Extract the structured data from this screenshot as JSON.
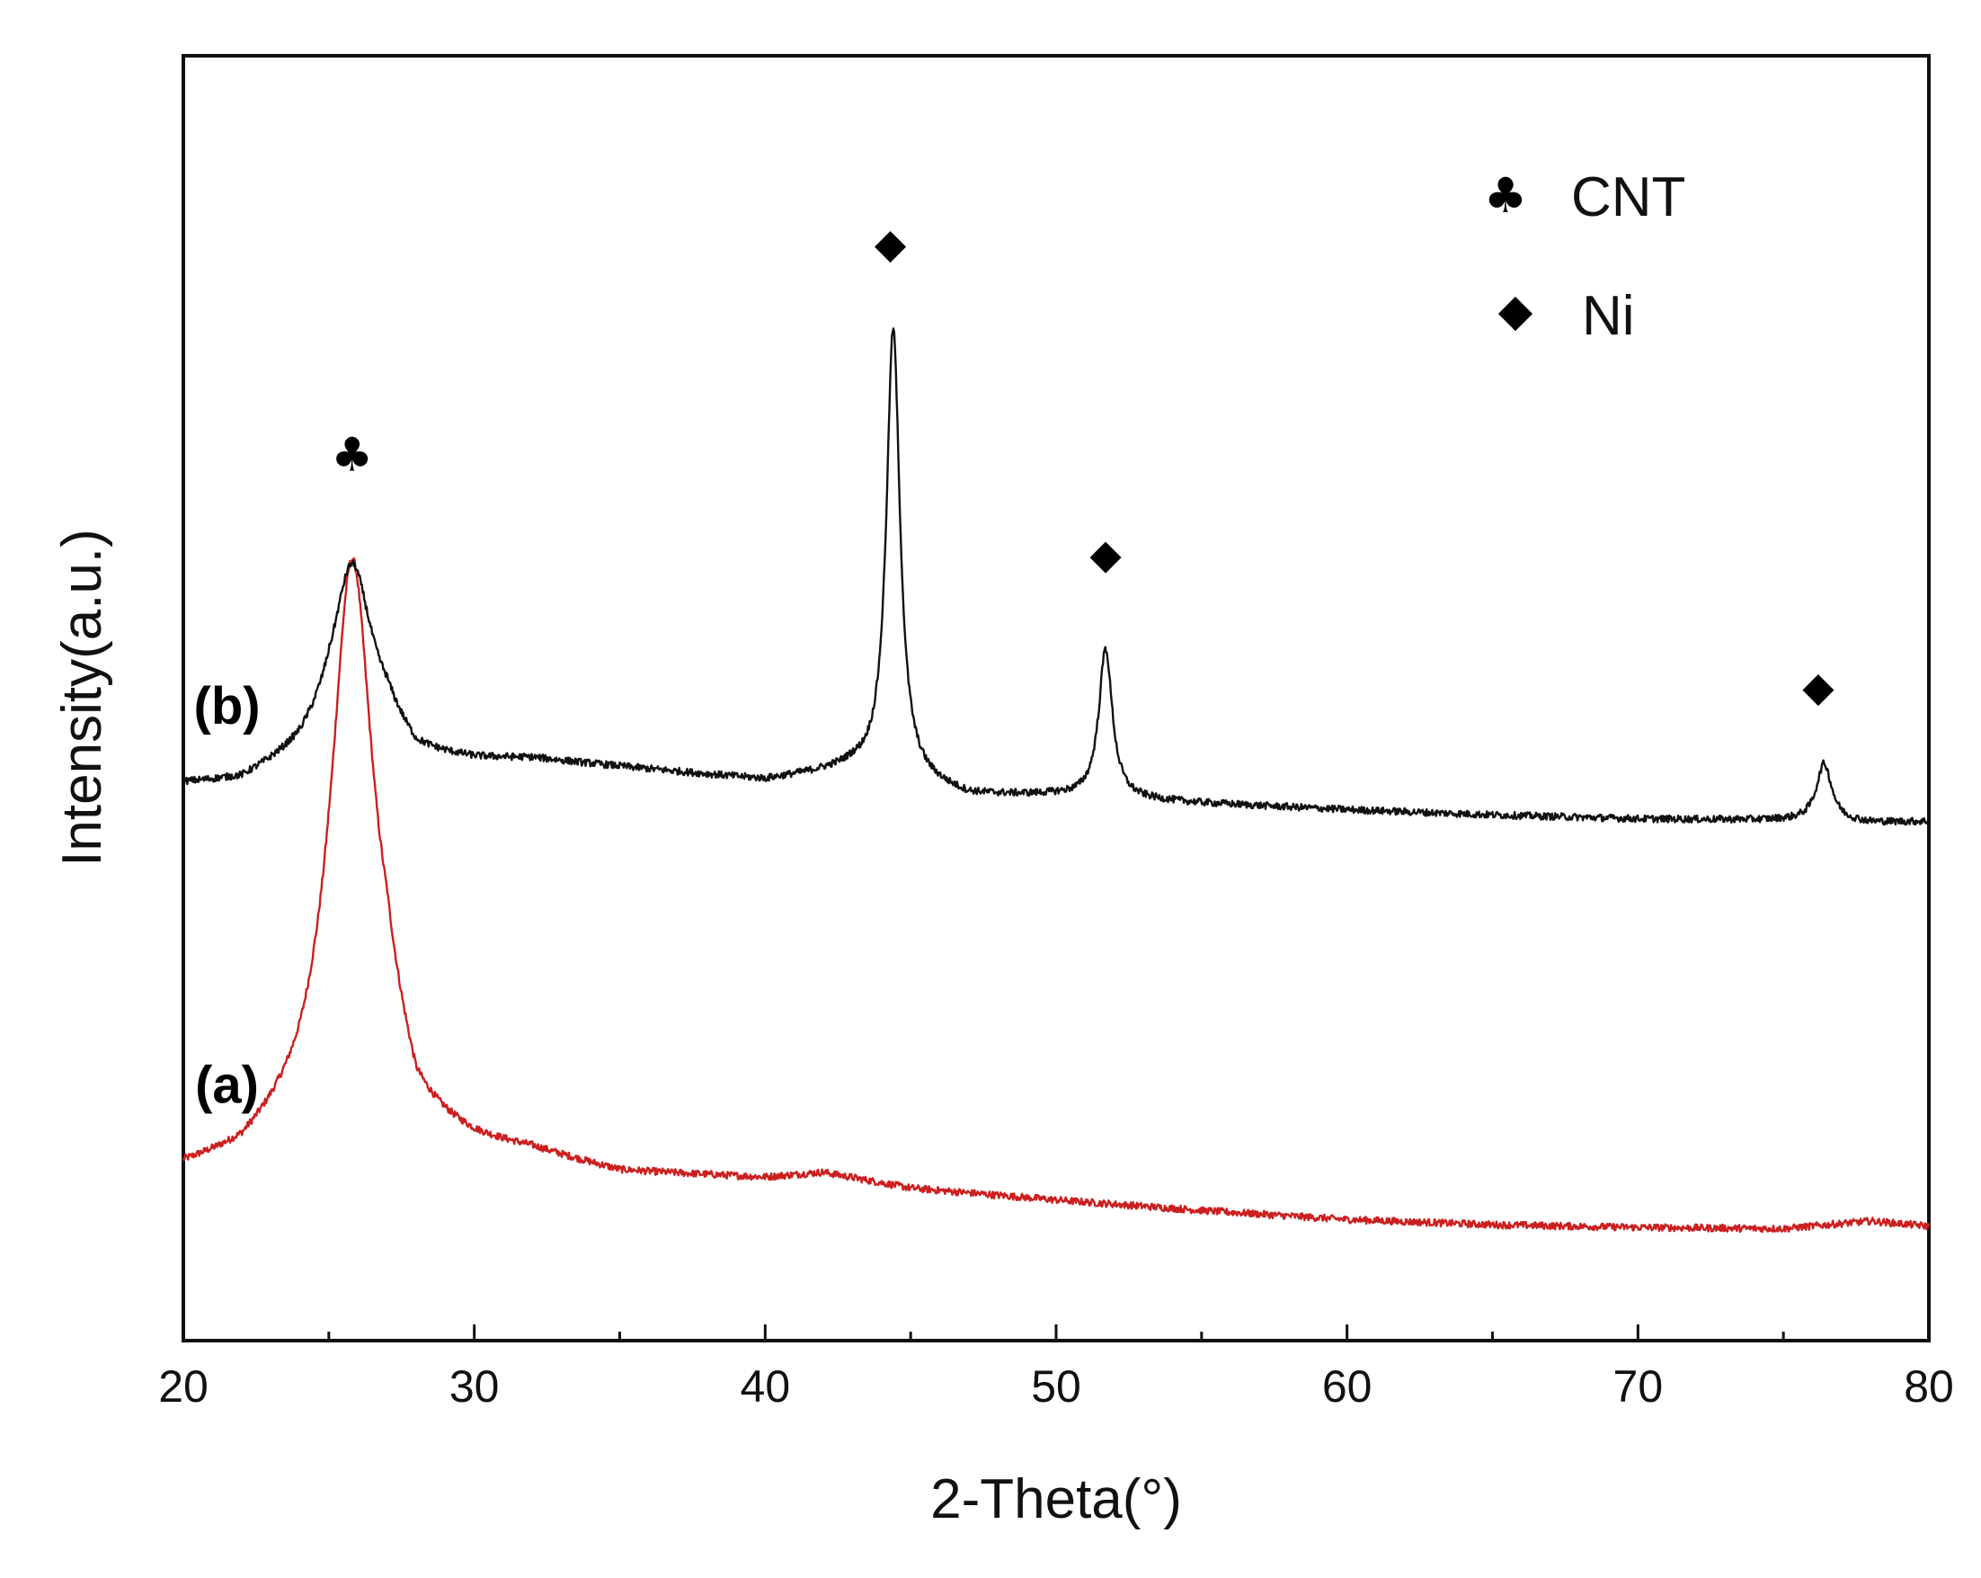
{
  "chart_data": {
    "type": "line",
    "title": "",
    "xlabel": "2-Theta(°)",
    "ylabel": "Intensity(a.u.)",
    "xlim": [
      20,
      80
    ],
    "ylim": [
      0,
      100
    ],
    "xticks": [
      20,
      30,
      40,
      50,
      60,
      70,
      80
    ],
    "yticks_shown": false,
    "grid": false,
    "legend": {
      "position": "top-right",
      "entries": [
        {
          "symbol": "♣",
          "symbol_name": "club-icon",
          "label": "CNT"
        },
        {
          "symbol": "◆",
          "symbol_name": "diamond-icon",
          "label": "Ni"
        }
      ]
    },
    "series": [
      {
        "name": "(a)",
        "label": "(a)",
        "color": "#cc1f1f",
        "baseline_profile": {
          "x": [
            20,
            22,
            24,
            25,
            27,
            28,
            30,
            32,
            35,
            40,
            42,
            45,
            50,
            55,
            60,
            65,
            70,
            75,
            78,
            80
          ],
          "y": [
            13.3,
            14.3,
            17.5,
            20.0,
            21.8,
            16.2,
            15.0,
            14.5,
            13.0,
            12.6,
            13.0,
            11.8,
            10.9,
            10.1,
            9.4,
            9.0,
            8.8,
            8.7,
            9.3,
            8.9
          ]
        },
        "peaks": [
          {
            "center": 25.8,
            "height": 40.1,
            "width": 0.85
          }
        ]
      },
      {
        "name": "(b)",
        "label": "(b)",
        "color": "#111111",
        "baseline_profile": {
          "x": [
            20,
            22,
            24,
            25,
            27,
            28,
            30,
            32,
            35,
            40,
            43,
            45,
            47,
            50,
            55,
            60,
            65,
            70,
            75,
            78,
            80
          ],
          "y": [
            43.3,
            43.5,
            45.5,
            47.3,
            47.7,
            45.4,
            45.1,
            45.2,
            44.6,
            43.6,
            44.5,
            43.6,
            42.4,
            42.4,
            41.8,
            41.3,
            40.9,
            40.6,
            40.5,
            40.3,
            40.4
          ]
        },
        "peaks": [
          {
            "center": 25.8,
            "height": 13.0,
            "width": 0.8
          },
          {
            "center": 44.4,
            "height": 34.9,
            "width": 0.28
          },
          {
            "center": 51.7,
            "height": 11.6,
            "width": 0.28
          },
          {
            "center": 76.4,
            "height": 4.5,
            "width": 0.32
          }
        ]
      }
    ],
    "peak_markers": [
      {
        "x": 25.8,
        "y": 67.7,
        "symbol": "♣",
        "phase": "CNT"
      },
      {
        "x": 44.3,
        "y": 84.3,
        "symbol": "◆",
        "phase": "Ni"
      },
      {
        "x": 51.7,
        "y": 60.1,
        "symbol": "◆",
        "phase": "Ni"
      },
      {
        "x": 76.2,
        "y": 49.8,
        "symbol": "◆",
        "phase": "Ni"
      }
    ],
    "curve_labels": [
      {
        "text": "(b)",
        "x": 21.5,
        "y": 48.0
      },
      {
        "text": "(a)",
        "x": 21.5,
        "y": 18.5
      }
    ]
  }
}
